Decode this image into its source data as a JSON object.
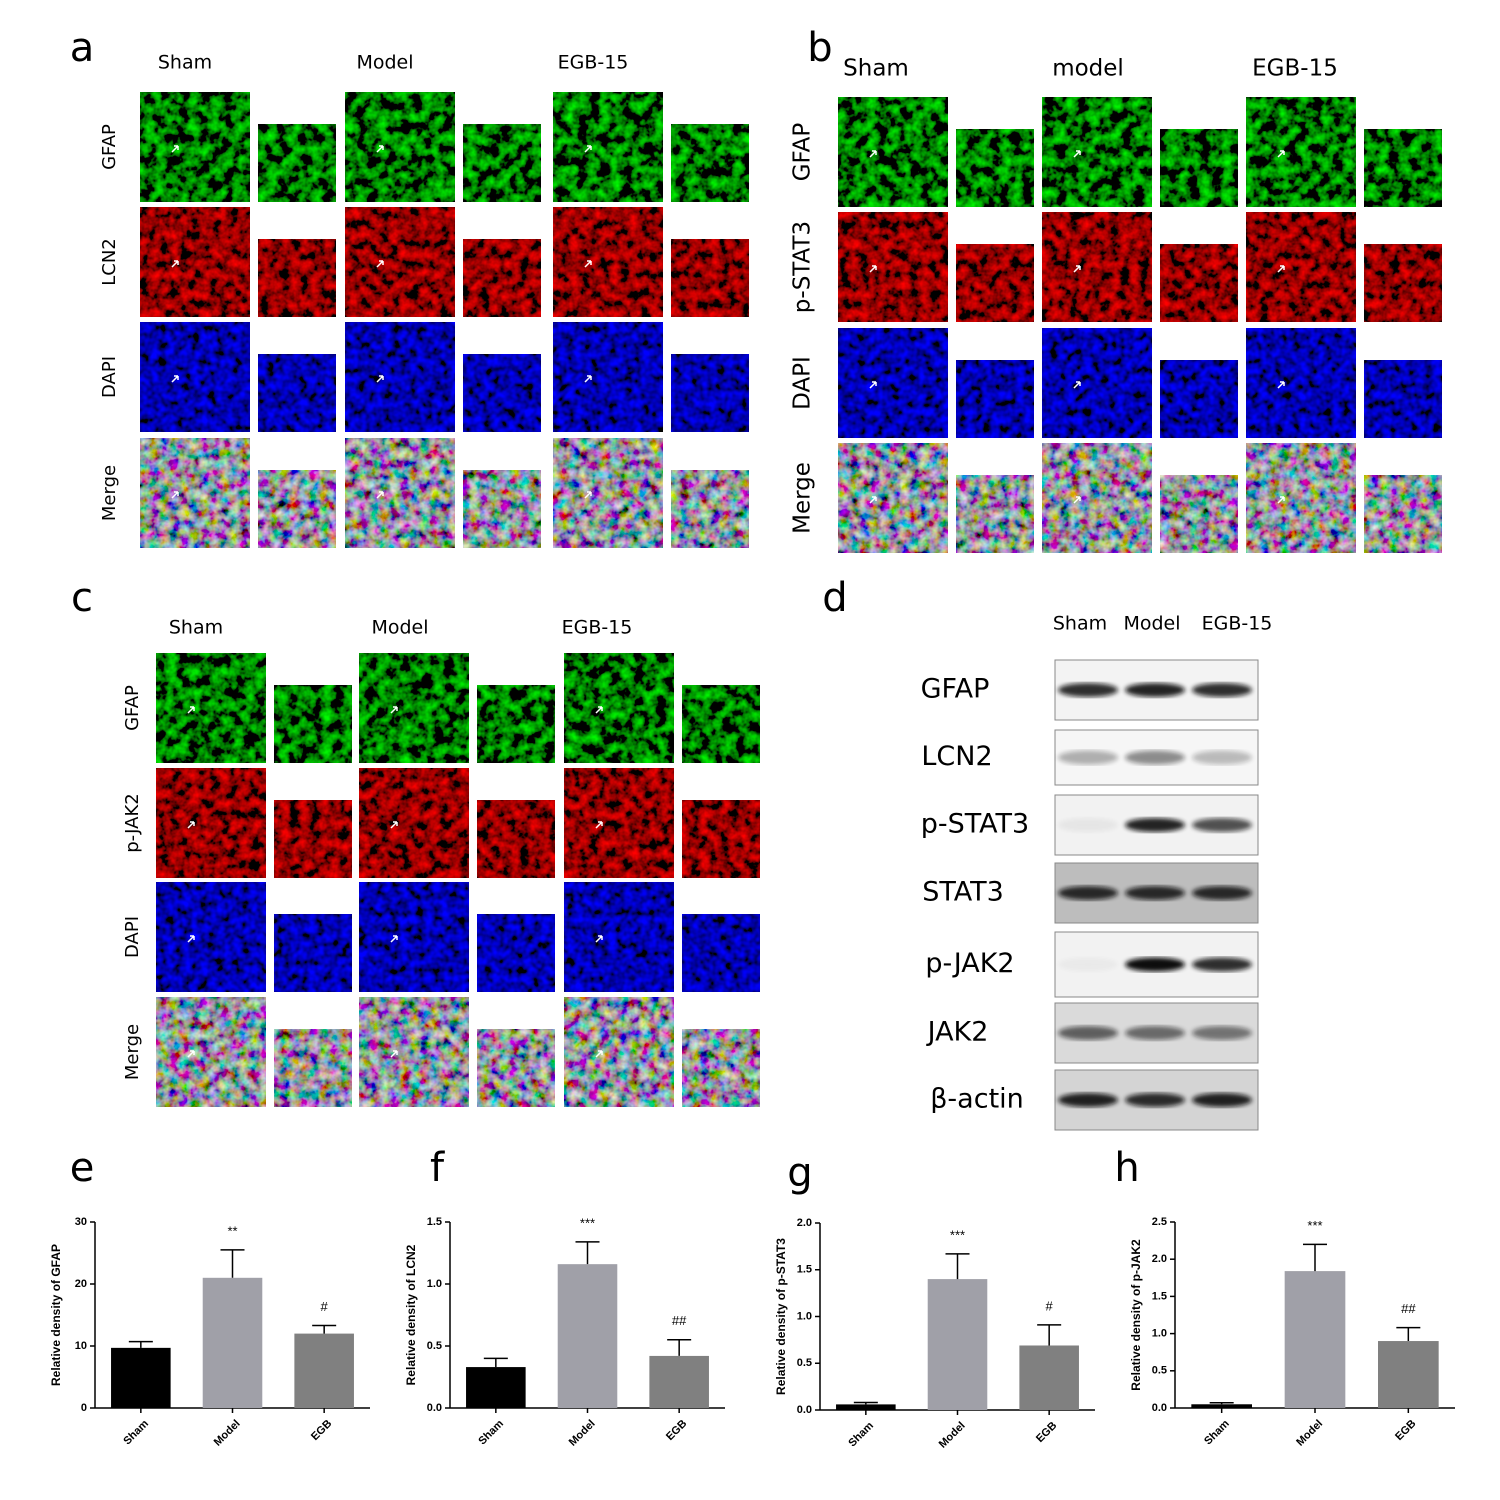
{
  "panels": [
    {
      "label": "a",
      "columns": [
        "Sham",
        "Model",
        "EGB-15"
      ],
      "rows": [
        "GFAP",
        "LCN2",
        "DAPI",
        "Merge"
      ]
    },
    {
      "label": "b",
      "columns": [
        "Sham",
        "model",
        "EGB-15"
      ],
      "rows": [
        "GFAP",
        "p-STAT3",
        "DAPI",
        "Merge"
      ]
    },
    {
      "label": "c",
      "columns": [
        "Sham",
        "Model",
        "EGB-15"
      ],
      "rows": [
        "GFAP",
        "p-JAK2",
        "DAPI",
        "Merge"
      ]
    },
    {
      "label": "d",
      "columns": [
        "Sham",
        "Model",
        "EGB-15"
      ],
      "rows": [
        "GFAP",
        "LCN2",
        "p-STAT3",
        "STAT3",
        "p-JAK2",
        "JAK2",
        "β-actin"
      ]
    }
  ],
  "chart_data": [
    {
      "type": "bar",
      "panel_label": "e",
      "y_label": "Relative density of GFAP",
      "categories": [
        "Sham",
        "Model",
        "EGB"
      ],
      "values": [
        9.7,
        21,
        12
      ],
      "errors": [
        1.0,
        4.5,
        1.3
      ],
      "annotations": [
        null,
        "**",
        "#"
      ],
      "colors": [
        "#000000",
        "#a0a0a8",
        "#808080"
      ],
      "ylim": [
        0,
        30
      ],
      "yticks": [
        0,
        10,
        20,
        30
      ]
    },
    {
      "type": "bar",
      "panel_label": "f",
      "y_label": "Relative density of LCN2",
      "categories": [
        "Sham",
        "Model",
        "EGB"
      ],
      "values": [
        0.33,
        1.16,
        0.42
      ],
      "errors": [
        0.07,
        0.18,
        0.13
      ],
      "annotations": [
        null,
        "***",
        "##"
      ],
      "colors": [
        "#000000",
        "#a0a0a8",
        "#808080"
      ],
      "ylim": [
        0,
        1.5
      ],
      "yticks": [
        {
          "value": 0,
          "label": "0.0"
        },
        0.5,
        {
          "value": 1,
          "label": "1.0"
        },
        1.5
      ]
    },
    {
      "type": "bar",
      "panel_label": "g",
      "y_label": "Relative density of p-STAT3",
      "categories": [
        "Sham",
        "Model",
        "EGB"
      ],
      "values": [
        0.06,
        1.4,
        0.69
      ],
      "errors": [
        0.02,
        0.27,
        0.22
      ],
      "annotations": [
        null,
        "***",
        "#"
      ],
      "colors": [
        "#000000",
        "#a0a0a8",
        "#808080"
      ],
      "ylim": [
        0,
        2
      ],
      "yticks": [
        {
          "value": 0,
          "label": "0.0"
        },
        0.5,
        {
          "value": 1,
          "label": "1.0"
        },
        1.5,
        {
          "value": 2,
          "label": "2.0"
        }
      ]
    },
    {
      "type": "bar",
      "panel_label": "h",
      "y_label": "Relative density of p-JAK2",
      "categories": [
        "Sham",
        "Model",
        "EGB"
      ],
      "values": [
        0.05,
        1.84,
        0.9
      ],
      "errors": [
        0.02,
        0.36,
        0.18
      ],
      "annotations": [
        null,
        "***",
        "##"
      ],
      "colors": [
        "#000000",
        "#a0a0a8",
        "#808080"
      ],
      "ylim": [
        0,
        2.5
      ],
      "yticks": [
        {
          "value": 0,
          "label": "0.0"
        },
        0.5,
        {
          "value": 1,
          "label": "1.0"
        },
        1.5,
        {
          "value": 2,
          "label": "2.0"
        },
        2.5
      ]
    }
  ]
}
